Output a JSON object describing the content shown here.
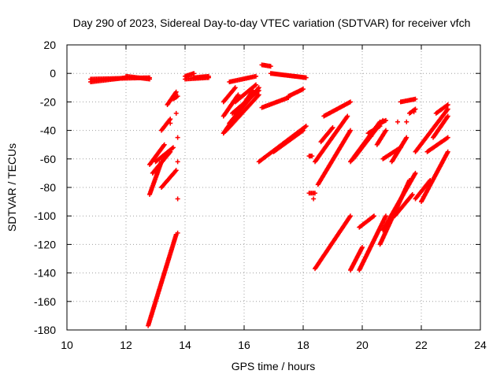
{
  "chart_data": {
    "type": "scatter",
    "title": "Day 290 of 2023, Sidereal Day-to-day VTEC variation (SDTVAR) for receiver vfch",
    "xlabel": "GPS time / hours",
    "ylabel": "SDTVAR / TECUs",
    "xlim": [
      10,
      24
    ],
    "ylim": [
      -180,
      20
    ],
    "x_ticks": [
      10,
      12,
      14,
      16,
      18,
      20,
      22,
      24
    ],
    "y_ticks": [
      20,
      0,
      -20,
      -40,
      -60,
      -80,
      -100,
      -120,
      -140,
      -160,
      -180
    ],
    "grid": true,
    "marker": "+",
    "color": "#ff0000",
    "segments": [
      {
        "x": [
          10.8,
          12.8
        ],
        "y": [
          -4,
          -3
        ]
      },
      {
        "x": [
          10.8,
          12.0
        ],
        "y": [
          -6,
          -3
        ]
      },
      {
        "x": [
          12.0,
          12.8
        ],
        "y": [
          -2,
          -4
        ]
      },
      {
        "x": [
          12.75,
          13.7
        ],
        "y": [
          -177,
          -113
        ]
      },
      {
        "x": [
          12.8,
          13.2
        ],
        "y": [
          -85,
          -62
        ]
      },
      {
        "x": [
          12.8,
          13.3
        ],
        "y": [
          -64,
          -50
        ]
      },
      {
        "x": [
          12.9,
          13.5
        ],
        "y": [
          -70,
          -55
        ]
      },
      {
        "x": [
          13.0,
          13.6
        ],
        "y": [
          -62,
          -52
        ]
      },
      {
        "x": [
          13.2,
          13.7
        ],
        "y": [
          -80,
          -68
        ]
      },
      {
        "x": [
          13.4,
          13.7
        ],
        "y": [
          -22,
          -13
        ]
      },
      {
        "x": [
          13.2,
          13.5
        ],
        "y": [
          -40,
          -32
        ]
      },
      {
        "x": [
          13.6,
          13.75
        ],
        "y": [
          -18,
          -16
        ]
      },
      {
        "x": [
          14.0,
          14.8
        ],
        "y": [
          -4,
          -3
        ]
      },
      {
        "x": [
          14.0,
          14.3
        ],
        "y": [
          -2,
          0
        ]
      },
      {
        "x": [
          14.3,
          14.8
        ],
        "y": [
          -3,
          -2
        ]
      },
      {
        "x": [
          15.3,
          16.3
        ],
        "y": [
          -42,
          -12
        ]
      },
      {
        "x": [
          15.3,
          15.8
        ],
        "y": [
          -30,
          -15
        ]
      },
      {
        "x": [
          15.3,
          15.7
        ],
        "y": [
          -20,
          -10
        ]
      },
      {
        "x": [
          15.4,
          16.5
        ],
        "y": [
          -40,
          -15
        ]
      },
      {
        "x": [
          15.5,
          16.5
        ],
        "y": [
          -35,
          -10
        ]
      },
      {
        "x": [
          15.6,
          16.5
        ],
        "y": [
          -28,
          -12
        ]
      },
      {
        "x": [
          15.7,
          16.4
        ],
        "y": [
          -20,
          -8
        ]
      },
      {
        "x": [
          15.5,
          16.4
        ],
        "y": [
          -6,
          -2
        ]
      },
      {
        "x": [
          16.6,
          16.9
        ],
        "y": [
          6,
          5
        ]
      },
      {
        "x": [
          16.9,
          18.1
        ],
        "y": [
          0,
          -3
        ]
      },
      {
        "x": [
          16.6,
          17.5
        ],
        "y": [
          -24,
          -17
        ]
      },
      {
        "x": [
          17.5,
          18.0
        ],
        "y": [
          -16,
          -11
        ]
      },
      {
        "x": [
          16.5,
          18.1
        ],
        "y": [
          -62,
          -37
        ]
      },
      {
        "x": [
          17.0,
          18.0
        ],
        "y": [
          -55,
          -40
        ]
      },
      {
        "x": [
          18.2,
          18.4
        ],
        "y": [
          -84,
          -84
        ]
      },
      {
        "x": [
          18.2,
          18.3
        ],
        "y": [
          -58,
          -58
        ]
      },
      {
        "x": [
          18.4,
          19.6
        ],
        "y": [
          -137,
          -100
        ]
      },
      {
        "x": [
          18.4,
          19.5
        ],
        "y": [
          -62,
          -30
        ]
      },
      {
        "x": [
          18.5,
          19.6
        ],
        "y": [
          -78,
          -40
        ]
      },
      {
        "x": [
          18.6,
          19.0
        ],
        "y": [
          -48,
          -38
        ]
      },
      {
        "x": [
          18.7,
          19.6
        ],
        "y": [
          -30,
          -20
        ]
      },
      {
        "x": [
          19.6,
          20.6
        ],
        "y": [
          -62,
          -34
        ]
      },
      {
        "x": [
          19.7,
          20.7
        ],
        "y": [
          -60,
          -33
        ]
      },
      {
        "x": [
          19.6,
          20.0
        ],
        "y": [
          -138,
          -122
        ]
      },
      {
        "x": [
          19.9,
          20.8
        ],
        "y": [
          -138,
          -100
        ]
      },
      {
        "x": [
          19.9,
          20.4
        ],
        "y": [
          -108,
          -100
        ]
      },
      {
        "x": [
          20.2,
          20.6
        ],
        "y": [
          -42,
          -37
        ]
      },
      {
        "x": [
          20.5,
          20.8
        ],
        "y": [
          -50,
          -40
        ]
      },
      {
        "x": [
          20.6,
          20.8
        ],
        "y": [
          -35,
          -33
        ]
      },
      {
        "x": [
          20.7,
          21.3
        ],
        "y": [
          -60,
          -52
        ]
      },
      {
        "x": [
          21.0,
          21.5
        ],
        "y": [
          -62,
          -45
        ]
      },
      {
        "x": [
          20.6,
          21.6
        ],
        "y": [
          -120,
          -75
        ]
      },
      {
        "x": [
          20.7,
          21.8
        ],
        "y": [
          -110,
          -70
        ]
      },
      {
        "x": [
          21.1,
          21.7
        ],
        "y": [
          -100,
          -85
        ]
      },
      {
        "x": [
          21.3,
          21.8
        ],
        "y": [
          -20,
          -18
        ]
      },
      {
        "x": [
          21.6,
          21.8
        ],
        "y": [
          -28,
          -25
        ]
      },
      {
        "x": [
          21.8,
          22.3
        ],
        "y": [
          -88,
          -75
        ]
      },
      {
        "x": [
          21.8,
          22.9
        ],
        "y": [
          -55,
          -25
        ]
      },
      {
        "x": [
          22.0,
          22.9
        ],
        "y": [
          -90,
          -55
        ]
      },
      {
        "x": [
          22.2,
          22.9
        ],
        "y": [
          -55,
          -45
        ]
      },
      {
        "x": [
          22.4,
          22.9
        ],
        "y": [
          -45,
          -30
        ]
      },
      {
        "x": [
          22.5,
          22.9
        ],
        "y": [
          -28,
          -22
        ]
      }
    ],
    "points": [
      {
        "x": 13.5,
        "y": -35
      },
      {
        "x": 13.7,
        "y": -28
      },
      {
        "x": 13.75,
        "y": -45
      },
      {
        "x": 13.75,
        "y": -62
      },
      {
        "x": 13.75,
        "y": -88
      },
      {
        "x": 13.75,
        "y": -112
      },
      {
        "x": 18.35,
        "y": -88
      },
      {
        "x": 20.3,
        "y": -44
      },
      {
        "x": 21.2,
        "y": -34
      },
      {
        "x": 21.5,
        "y": -34
      },
      {
        "x": 21.75,
        "y": -27
      }
    ]
  }
}
